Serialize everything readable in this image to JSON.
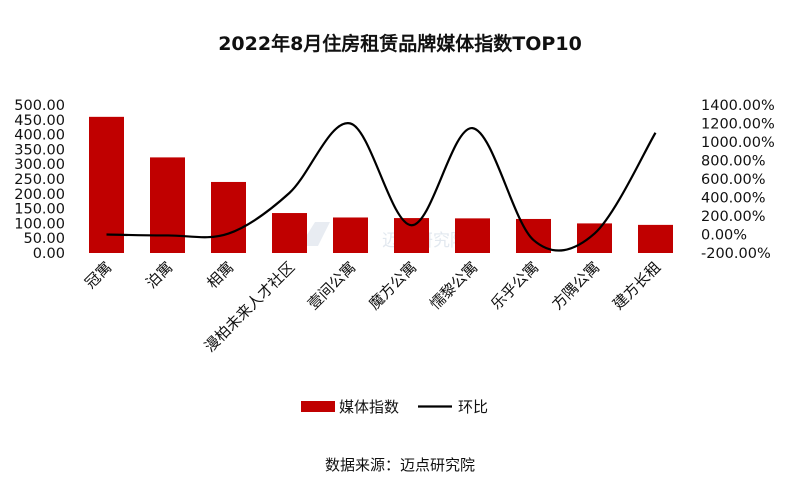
{
  "chart_data": {
    "type": "bar",
    "title": "2022年8月住房租赁品牌媒体指数TOP10",
    "categories": [
      "冠寓",
      "泊寓",
      "相寓",
      "漫柏未来人才社区",
      "壹间公寓",
      "魔方公寓",
      "懦黎公寓",
      "乐乎公寓",
      "方隅公寓",
      "建方长租"
    ],
    "series": [
      {
        "name": "媒体指数",
        "type": "bar",
        "axis": "left",
        "color": "#c00000",
        "values": [
          460,
          323,
          240,
          135,
          120,
          118,
          117,
          115,
          100,
          95
        ]
      },
      {
        "name": "环比",
        "type": "line",
        "axis": "right",
        "color": "#000000",
        "values": [
          0,
          -10,
          10,
          450,
          1200,
          100,
          1150,
          -60,
          10,
          1100
        ]
      }
    ],
    "left_axis": {
      "ylim": [
        0,
        500
      ],
      "ticks": [
        "500.00",
        "450.00",
        "400.00",
        "350.00",
        "300.00",
        "250.00",
        "200.00",
        "150.00",
        "100.00",
        "50.00",
        "0.00"
      ]
    },
    "right_axis": {
      "ylim": [
        -200,
        1400
      ],
      "ticks": [
        "1400.00%",
        "1200.00%",
        "1000.00%",
        "800.00%",
        "600.00%",
        "400.00%",
        "200.00%",
        "0.00%",
        "-200.00%"
      ]
    },
    "legend": {
      "position": "bottom",
      "entries": [
        "媒体指数",
        "环比"
      ]
    },
    "source": "数据来源：迈点研究院",
    "watermark": "迈点研究院"
  }
}
